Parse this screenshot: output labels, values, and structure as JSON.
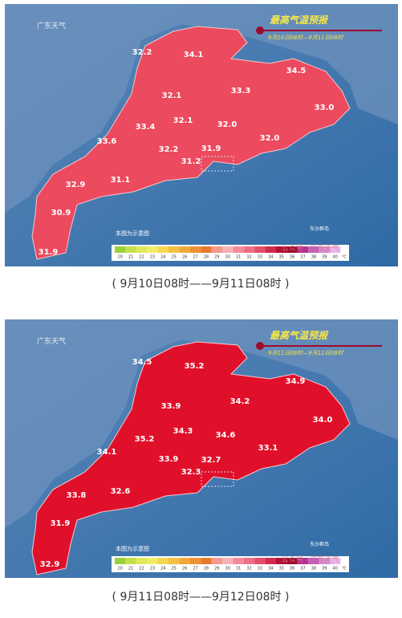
{
  "panels": [
    {
      "logo": "广东天气",
      "title": "最高气温预报",
      "period": "9月10日08时—9月11日08时",
      "labels": [
        "32.2",
        "34.1",
        "34.5",
        "32.1",
        "33.3",
        "33.0",
        "33.4",
        "32.1",
        "32.0",
        "33.6",
        "32.2",
        "31.9",
        "32.0",
        "31.2",
        "32.9",
        "31.1",
        "30.9",
        "31.9"
      ],
      "note": "本图为示意图",
      "island": "东沙群岛",
      "legend": {
        "ticks": [
          20,
          21,
          22,
          23,
          24,
          25,
          26,
          27,
          28,
          29,
          30,
          31,
          32,
          33,
          34,
          35,
          36,
          37,
          38,
          39,
          40
        ],
        "unit": "℃"
      },
      "watermark": "公众号 · 广东天气",
      "caption": "( 9月10日08时——9月11日08时 )"
    },
    {
      "logo": "广东天气",
      "title": "最高气温预报",
      "period": "9月11日08时—9月12日08时",
      "labels": [
        "34.5",
        "35.2",
        "34.9",
        "33.9",
        "34.2",
        "34.0",
        "35.2",
        "34.3",
        "34.6",
        "34.1",
        "33.9",
        "32.7",
        "33.1",
        "32.3",
        "33.8",
        "32.6",
        "31.9",
        "32.9"
      ],
      "note": "本图为示意图",
      "island": "东沙群岛",
      "legend": {
        "ticks": [
          20,
          21,
          22,
          23,
          24,
          25,
          26,
          27,
          28,
          29,
          30,
          31,
          32,
          33,
          34,
          35,
          36,
          37,
          38,
          39,
          40
        ],
        "unit": "℃"
      },
      "watermark": "公众号 · 广东天气",
      "caption": "( 9月11日08时——9月12日08时 )"
    }
  ]
}
